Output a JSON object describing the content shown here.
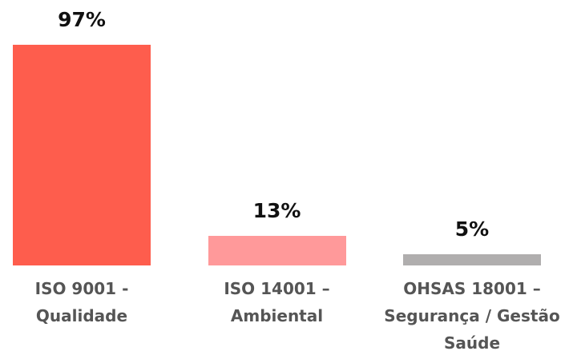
{
  "chart_data": {
    "type": "bar",
    "categories": [
      "ISO 9001 -\nQualidade",
      "ISO 14001 –\nAmbiental",
      "OHSAS 18001 –\nSegurança / Gestão\nSaúde"
    ],
    "values": [
      97,
      13,
      5
    ],
    "value_labels": [
      "97%",
      "13%",
      "5%"
    ],
    "colors": [
      "#fe5d4d",
      "#ff999a",
      "#b0aeae"
    ]
  }
}
